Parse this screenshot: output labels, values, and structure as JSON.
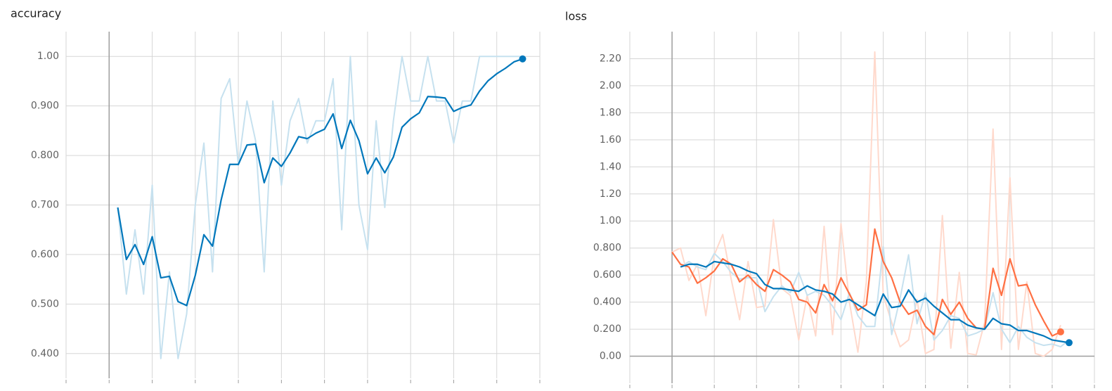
{
  "chart_data": [
    {
      "type": "line",
      "title": "accuracy",
      "x": [
        1,
        2,
        3,
        4,
        5,
        6,
        7,
        8,
        9,
        10,
        11,
        12,
        13,
        14,
        15,
        16,
        17,
        18,
        19,
        20,
        21,
        22,
        23,
        24,
        25,
        26,
        27,
        28,
        29,
        30,
        31,
        32,
        33,
        34,
        35,
        36,
        37,
        38,
        39,
        40,
        41,
        42,
        43,
        44,
        45,
        46,
        47,
        48
      ],
      "xlim": [
        -5,
        50
      ],
      "xticks": [
        -5,
        0,
        5,
        10,
        15,
        20,
        25,
        30,
        35,
        40,
        45,
        50
      ],
      "ylim": [
        0.35,
        1.05
      ],
      "yticks": [
        {
          "value": 0.4,
          "label": "0.400"
        },
        {
          "value": 0.5,
          "label": "0.500"
        },
        {
          "value": 0.6,
          "label": "0.600"
        },
        {
          "value": 0.7,
          "label": "0.700"
        },
        {
          "value": 0.8,
          "label": "0.800"
        },
        {
          "value": 0.9,
          "label": "0.900"
        },
        {
          "value": 1,
          "label": "1.00"
        }
      ],
      "grid": true,
      "series": [
        {
          "color": "#c6e1ef",
          "values": [
            0.695,
            0.52,
            0.65,
            0.52,
            0.74,
            0.39,
            0.565,
            0.39,
            0.48,
            0.7,
            0.825,
            0.565,
            0.915,
            0.955,
            0.78,
            0.91,
            0.83,
            0.565,
            0.91,
            0.74,
            0.87,
            0.915,
            0.825,
            0.87,
            0.87,
            0.955,
            0.65,
            1.0,
            0.7,
            0.61,
            0.87,
            0.695,
            0.87,
            1.0,
            0.91,
            0.91,
            1.0,
            0.91,
            0.91,
            0.825,
            0.91,
            0.91,
            1.0,
            1.0,
            1.0,
            1.0,
            1.0,
            1.0
          ]
        },
        {
          "color": "#0077bb",
          "end_marker": true,
          "values": [
            0.695,
            0.59,
            0.62,
            0.58,
            0.636,
            0.553,
            0.556,
            0.505,
            0.497,
            0.558,
            0.64,
            0.617,
            0.71,
            0.782,
            0.782,
            0.821,
            0.823,
            0.745,
            0.795,
            0.778,
            0.805,
            0.838,
            0.834,
            0.845,
            0.853,
            0.884,
            0.814,
            0.871,
            0.83,
            0.763,
            0.795,
            0.765,
            0.797,
            0.857,
            0.874,
            0.886,
            0.919,
            0.918,
            0.916,
            0.889,
            0.897,
            0.902,
            0.93,
            0.951,
            0.965,
            0.976,
            0.989,
            0.995
          ]
        }
      ]
    },
    {
      "type": "line",
      "title": "loss",
      "x": [
        0,
        1,
        2,
        3,
        4,
        5,
        6,
        7,
        8,
        9,
        10,
        11,
        12,
        13,
        14,
        15,
        16,
        17,
        18,
        19,
        20,
        21,
        22,
        23,
        24,
        25,
        26,
        27,
        28,
        29,
        30,
        31,
        32,
        33,
        34,
        35,
        36,
        37,
        38,
        39,
        40,
        41,
        42,
        43,
        44,
        45,
        46,
        47
      ],
      "xlim": [
        -5,
        50
      ],
      "xticks": [
        -5,
        0,
        5,
        10,
        15,
        20,
        25,
        30,
        35,
        40,
        45,
        50
      ],
      "ylim": [
        -0.2,
        2.4
      ],
      "yticks": [
        {
          "value": 0,
          "label": "0.00"
        },
        {
          "value": 0.2,
          "label": "0.200"
        },
        {
          "value": 0.4,
          "label": "0.400"
        },
        {
          "value": 0.6,
          "label": "0.600"
        },
        {
          "value": 0.8,
          "label": "0.800"
        },
        {
          "value": 1,
          "label": "1.00"
        },
        {
          "value": 1.2,
          "label": "1.20"
        },
        {
          "value": 1.4,
          "label": "1.40"
        },
        {
          "value": 1.6,
          "label": "1.60"
        },
        {
          "value": 1.8,
          "label": "1.80"
        },
        {
          "value": 2,
          "label": "2.00"
        },
        {
          "value": 2.2,
          "label": "2.20"
        }
      ],
      "grid": true,
      "series": [
        {
          "color": "#ffd9cc",
          "values": [
            0.77,
            0.8,
            0.56,
            0.68,
            0.3,
            0.75,
            0.9,
            0.57,
            0.27,
            0.7,
            0.36,
            0.37,
            1.01,
            0.5,
            0.45,
            0.12,
            0.45,
            0.15,
            0.96,
            0.16,
            0.98,
            0.4,
            0.03,
            0.55,
            2.25,
            0.45,
            0.25,
            0.07,
            0.12,
            0.42,
            0.02,
            0.05,
            1.04,
            0.06,
            0.62,
            0.02,
            0.01,
            0.25,
            1.68,
            0.05,
            1.32,
            0.05,
            0.55,
            0.02,
            0.0,
            0.05,
            0.23,
            null
          ]
        },
        {
          "color": "#c6e1ef",
          "values": [
            null,
            0.66,
            0.7,
            0.66,
            0.64,
            0.76,
            0.7,
            0.62,
            0.57,
            0.58,
            0.58,
            0.33,
            0.44,
            0.52,
            0.47,
            0.62,
            0.45,
            0.48,
            0.45,
            0.37,
            0.27,
            0.47,
            0.3,
            0.22,
            0.22,
            0.81,
            0.16,
            0.43,
            0.75,
            0.24,
            0.47,
            0.12,
            0.19,
            0.3,
            0.28,
            0.15,
            0.17,
            0.2,
            0.47,
            0.2,
            0.1,
            0.22,
            0.14,
            0.1,
            0.08,
            0.09,
            0.07,
            0.12
          ]
        },
        {
          "color": "#ff7043",
          "end_marker": true,
          "values": [
            0.77,
            0.68,
            0.66,
            0.54,
            0.58,
            0.63,
            0.72,
            0.68,
            0.55,
            0.6,
            0.53,
            0.48,
            0.64,
            0.6,
            0.55,
            0.42,
            0.4,
            0.32,
            0.53,
            0.41,
            0.58,
            0.46,
            0.34,
            0.38,
            0.94,
            0.7,
            0.58,
            0.4,
            0.31,
            0.34,
            0.22,
            0.16,
            0.42,
            0.31,
            0.4,
            0.28,
            0.21,
            0.2,
            0.65,
            0.45,
            0.72,
            0.52,
            0.53,
            0.38,
            0.26,
            0.15,
            0.18,
            null
          ]
        },
        {
          "color": "#0077bb",
          "end_marker": true,
          "values": [
            null,
            0.66,
            0.68,
            0.68,
            0.66,
            0.7,
            0.69,
            0.68,
            0.66,
            0.63,
            0.61,
            0.53,
            0.5,
            0.5,
            0.49,
            0.48,
            0.52,
            0.49,
            0.48,
            0.46,
            0.4,
            0.42,
            0.38,
            0.34,
            0.3,
            0.46,
            0.36,
            0.37,
            0.49,
            0.4,
            0.43,
            0.37,
            0.32,
            0.27,
            0.27,
            0.23,
            0.21,
            0.2,
            0.28,
            0.24,
            0.23,
            0.19,
            0.19,
            0.17,
            0.15,
            0.12,
            0.11,
            0.1
          ]
        }
      ]
    }
  ]
}
